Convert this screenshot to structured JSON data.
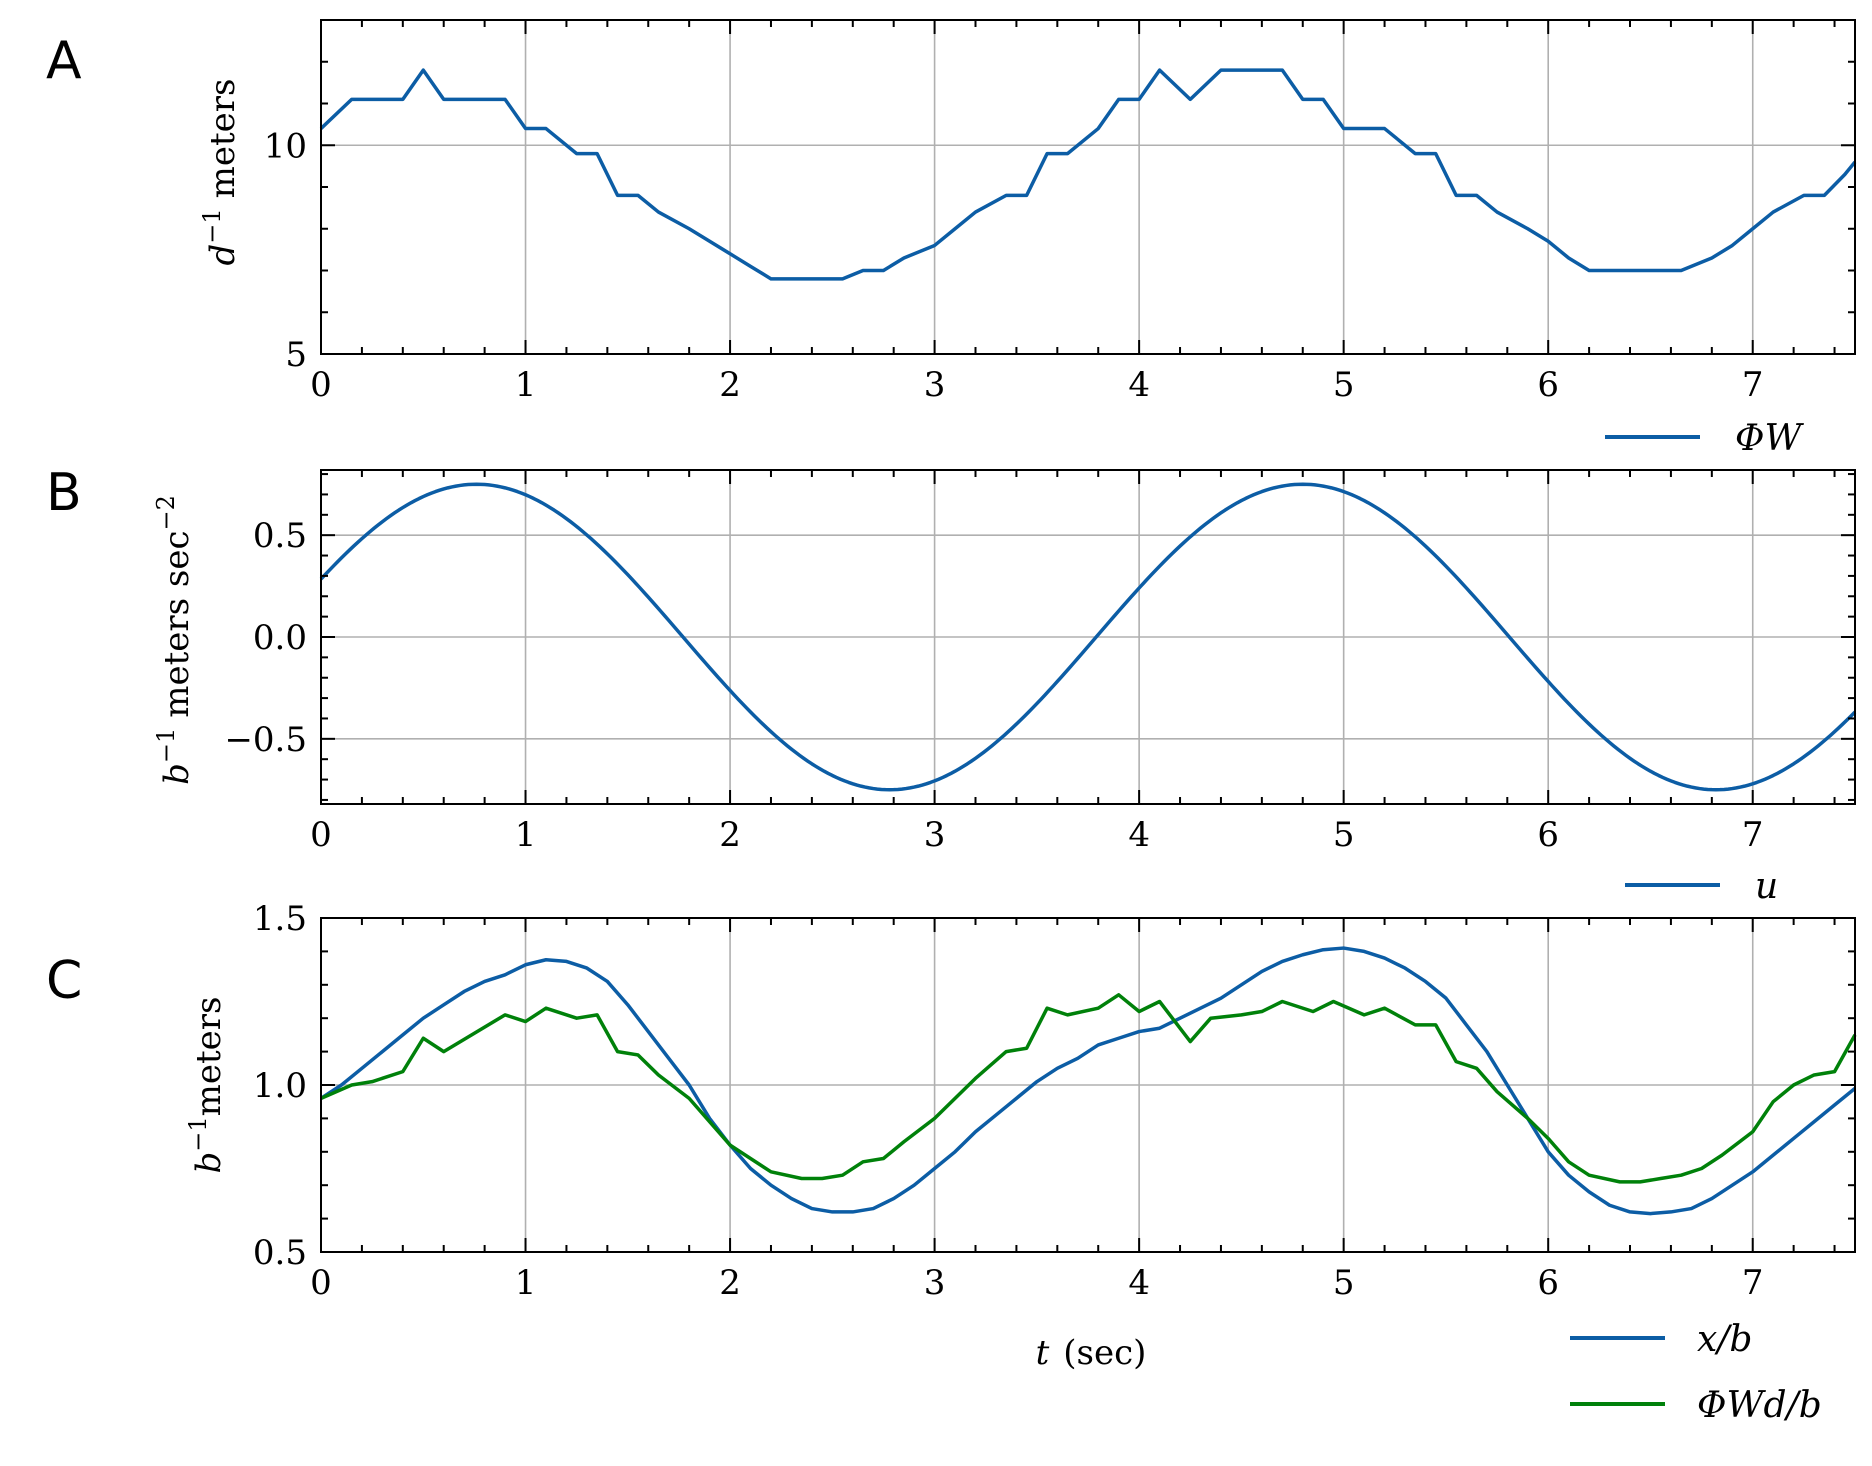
{
  "chart_data": [
    {
      "type": "line",
      "panel": "A",
      "ylabel": "d⁻¹ meters",
      "xlabel": "",
      "xlim": [
        0,
        7.5
      ],
      "ylim": [
        5,
        13
      ],
      "xticks": [
        0,
        1,
        2,
        3,
        4,
        5,
        6,
        7
      ],
      "xtick_labels": [
        "0",
        "1",
        "2",
        "3",
        "4",
        "5",
        "6",
        "7"
      ],
      "yticks": [
        5,
        10
      ],
      "ytick_labels": [
        "5",
        "10"
      ],
      "grid": true,
      "legend": "bottom-right",
      "series": [
        {
          "name": "ΦW",
          "color": "#0C5DA5",
          "x": [
            0,
            0.15,
            0.4,
            0.5,
            0.6,
            0.9,
            1.0,
            1.1,
            1.25,
            1.35,
            1.45,
            1.55,
            1.65,
            1.8,
            1.9,
            2.0,
            2.1,
            2.2,
            2.55,
            2.65,
            2.75,
            2.85,
            3.0,
            3.1,
            3.2,
            3.35,
            3.45,
            3.55,
            3.65,
            3.8,
            3.9,
            4.0,
            4.1,
            4.25,
            4.4,
            4.7,
            4.8,
            4.9,
            5.0,
            5.1,
            5.2,
            5.35,
            5.45,
            5.55,
            5.65,
            5.75,
            5.9,
            6.0,
            6.1,
            6.2,
            6.65,
            6.8,
            6.9,
            7.0,
            7.1,
            7.25,
            7.35,
            7.45,
            7.5
          ],
          "values": [
            10.4,
            11.1,
            11.1,
            11.8,
            11.1,
            11.1,
            10.4,
            10.4,
            9.8,
            9.8,
            8.8,
            8.8,
            8.4,
            8.0,
            7.7,
            7.4,
            7.1,
            6.8,
            6.8,
            7.0,
            7.0,
            7.3,
            7.6,
            8.0,
            8.4,
            8.8,
            8.8,
            9.8,
            9.8,
            10.4,
            11.1,
            11.1,
            11.8,
            11.1,
            11.8,
            11.8,
            11.1,
            11.1,
            10.4,
            10.4,
            10.4,
            9.8,
            9.8,
            8.8,
            8.8,
            8.4,
            8.0,
            7.7,
            7.3,
            7.0,
            7.0,
            7.3,
            7.6,
            8.0,
            8.4,
            8.8,
            8.8,
            9.3,
            9.6
          ]
        }
      ]
    },
    {
      "type": "line",
      "panel": "B",
      "ylabel": "b⁻¹ meters sec⁻²",
      "xlabel": "",
      "xlim": [
        0,
        7.5
      ],
      "ylim": [
        -0.82,
        0.82
      ],
      "xticks": [
        0,
        1,
        2,
        3,
        4,
        5,
        6,
        7
      ],
      "xtick_labels": [
        "0",
        "1",
        "2",
        "3",
        "4",
        "5",
        "6",
        "7"
      ],
      "yticks": [
        0.5,
        0.0,
        -0.5
      ],
      "ytick_labels": [
        "0.5",
        "0.0",
        "−0.5"
      ],
      "grid": true,
      "legend": "bottom-right",
      "series": [
        {
          "name": "u",
          "color": "#0C5DA5",
          "amplitude": 0.75,
          "period": 4.04,
          "peak_t": 0.76
        }
      ]
    },
    {
      "type": "line",
      "panel": "C",
      "ylabel": "b⁻¹meters",
      "xlabel": "t (sec)",
      "xlim": [
        0,
        7.5
      ],
      "ylim": [
        0.5,
        1.5
      ],
      "xticks": [
        0,
        1,
        2,
        3,
        4,
        5,
        6,
        7
      ],
      "xtick_labels": [
        "0",
        "1",
        "2",
        "3",
        "4",
        "5",
        "6",
        "7"
      ],
      "yticks": [
        0.5,
        1.0,
        1.5
      ],
      "ytick_labels": [
        "0.5",
        "1.0",
        "1.5"
      ],
      "grid": true,
      "legend": "bottom-right",
      "series": [
        {
          "name": "x/b",
          "color": "#0C5DA5",
          "x": [
            0,
            0.1,
            0.2,
            0.3,
            0.4,
            0.5,
            0.6,
            0.7,
            0.8,
            0.9,
            1.0,
            1.1,
            1.2,
            1.3,
            1.4,
            1.5,
            1.6,
            1.7,
            1.8,
            1.9,
            2.0,
            2.1,
            2.2,
            2.3,
            2.4,
            2.5,
            2.6,
            2.7,
            2.8,
            2.9,
            3.0,
            3.1,
            3.2,
            3.3,
            3.4,
            3.5,
            3.6,
            3.7,
            3.8,
            3.9,
            4.0,
            4.1,
            4.2,
            4.3,
            4.4,
            4.5,
            4.6,
            4.7,
            4.8,
            4.9,
            5.0,
            5.1,
            5.2,
            5.3,
            5.4,
            5.5,
            5.6,
            5.7,
            5.8,
            5.9,
            6.0,
            6.1,
            6.2,
            6.3,
            6.4,
            6.5,
            6.6,
            6.7,
            6.8,
            6.9,
            7.0,
            7.1,
            7.2,
            7.3,
            7.4,
            7.5
          ],
          "values": [
            0.96,
            1.0,
            1.05,
            1.1,
            1.15,
            1.2,
            1.24,
            1.28,
            1.31,
            1.33,
            1.36,
            1.375,
            1.37,
            1.35,
            1.31,
            1.24,
            1.16,
            1.08,
            1.0,
            0.9,
            0.82,
            0.75,
            0.7,
            0.66,
            0.63,
            0.62,
            0.62,
            0.63,
            0.66,
            0.7,
            0.75,
            0.8,
            0.86,
            0.91,
            0.96,
            1.01,
            1.05,
            1.08,
            1.12,
            1.14,
            1.16,
            1.17,
            1.2,
            1.23,
            1.26,
            1.3,
            1.34,
            1.37,
            1.39,
            1.405,
            1.41,
            1.4,
            1.38,
            1.35,
            1.31,
            1.26,
            1.18,
            1.1,
            1.0,
            0.9,
            0.8,
            0.73,
            0.68,
            0.64,
            0.62,
            0.615,
            0.62,
            0.63,
            0.66,
            0.7,
            0.74,
            0.79,
            0.84,
            0.89,
            0.94,
            0.99
          ]
        },
        {
          "name": "ΦWd/b",
          "color": "#00810A",
          "x": [
            0,
            0.15,
            0.25,
            0.4,
            0.5,
            0.6,
            0.9,
            1.0,
            1.1,
            1.25,
            1.35,
            1.45,
            1.55,
            1.65,
            1.8,
            1.9,
            2.0,
            2.1,
            2.2,
            2.35,
            2.45,
            2.55,
            2.65,
            2.75,
            2.85,
            3.0,
            3.1,
            3.2,
            3.35,
            3.45,
            3.55,
            3.65,
            3.8,
            3.9,
            4.0,
            4.1,
            4.25,
            4.35,
            4.5,
            4.6,
            4.7,
            4.85,
            4.95,
            5.1,
            5.2,
            5.35,
            5.45,
            5.55,
            5.65,
            5.75,
            5.9,
            6.0,
            6.1,
            6.2,
            6.35,
            6.45,
            6.55,
            6.65,
            6.75,
            6.85,
            7.0,
            7.1,
            7.2,
            7.3,
            7.4,
            7.5
          ],
          "values": [
            0.96,
            1.0,
            1.01,
            1.04,
            1.14,
            1.1,
            1.21,
            1.19,
            1.23,
            1.2,
            1.21,
            1.1,
            1.09,
            1.03,
            0.96,
            0.89,
            0.82,
            0.78,
            0.74,
            0.72,
            0.72,
            0.73,
            0.77,
            0.78,
            0.83,
            0.9,
            0.96,
            1.02,
            1.1,
            1.11,
            1.23,
            1.21,
            1.23,
            1.27,
            1.22,
            1.25,
            1.13,
            1.2,
            1.21,
            1.22,
            1.25,
            1.22,
            1.25,
            1.21,
            1.23,
            1.18,
            1.18,
            1.07,
            1.05,
            0.98,
            0.9,
            0.84,
            0.77,
            0.73,
            0.71,
            0.71,
            0.72,
            0.73,
            0.75,
            0.79,
            0.86,
            0.95,
            1.0,
            1.03,
            1.04,
            1.15
          ]
        }
      ]
    }
  ],
  "panels": {
    "A": {
      "letter": "A",
      "ylabel_base": "d",
      "ylabel_sup": "−1",
      "ylabel_rest": "meters",
      "legend_label": "ΦW"
    },
    "B": {
      "letter": "B",
      "ylabel_base": "b",
      "ylabel_sup": "−1",
      "ylabel_rest": "meters sec",
      "ylabel_sup2": "−2",
      "legend_label": "u"
    },
    "C": {
      "letter": "C",
      "ylabel_base": "b",
      "ylabel_sup": "−1",
      "ylabel_rest": "meters",
      "xlabel_var": "t",
      "xlabel_rest": "(sec)",
      "legend_label_1": "x/b",
      "legend_label_2": "ΦWd/b"
    }
  }
}
